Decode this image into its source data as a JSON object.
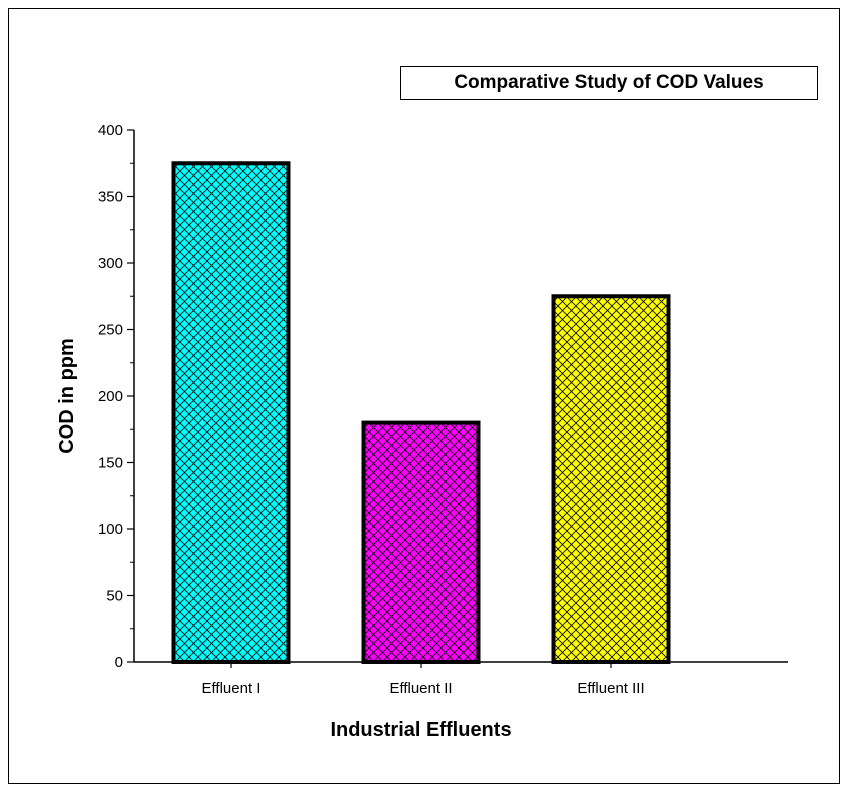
{
  "chart_data": {
    "type": "bar",
    "title": "Comparative Study of COD Values",
    "xlabel": "Industrial Effluents",
    "ylabel": "COD in ppm",
    "categories": [
      "Effluent I",
      "Effluent II",
      "Effluent III"
    ],
    "values": [
      375,
      180,
      275
    ],
    "ylim": [
      0,
      400
    ],
    "yticks": [
      0,
      50,
      100,
      150,
      200,
      250,
      300,
      350,
      400
    ],
    "colors": [
      "#00FFFF",
      "#FF00FF",
      "#FFFF00"
    ],
    "pattern": "crosshatch",
    "grid": false,
    "legend": "none"
  }
}
